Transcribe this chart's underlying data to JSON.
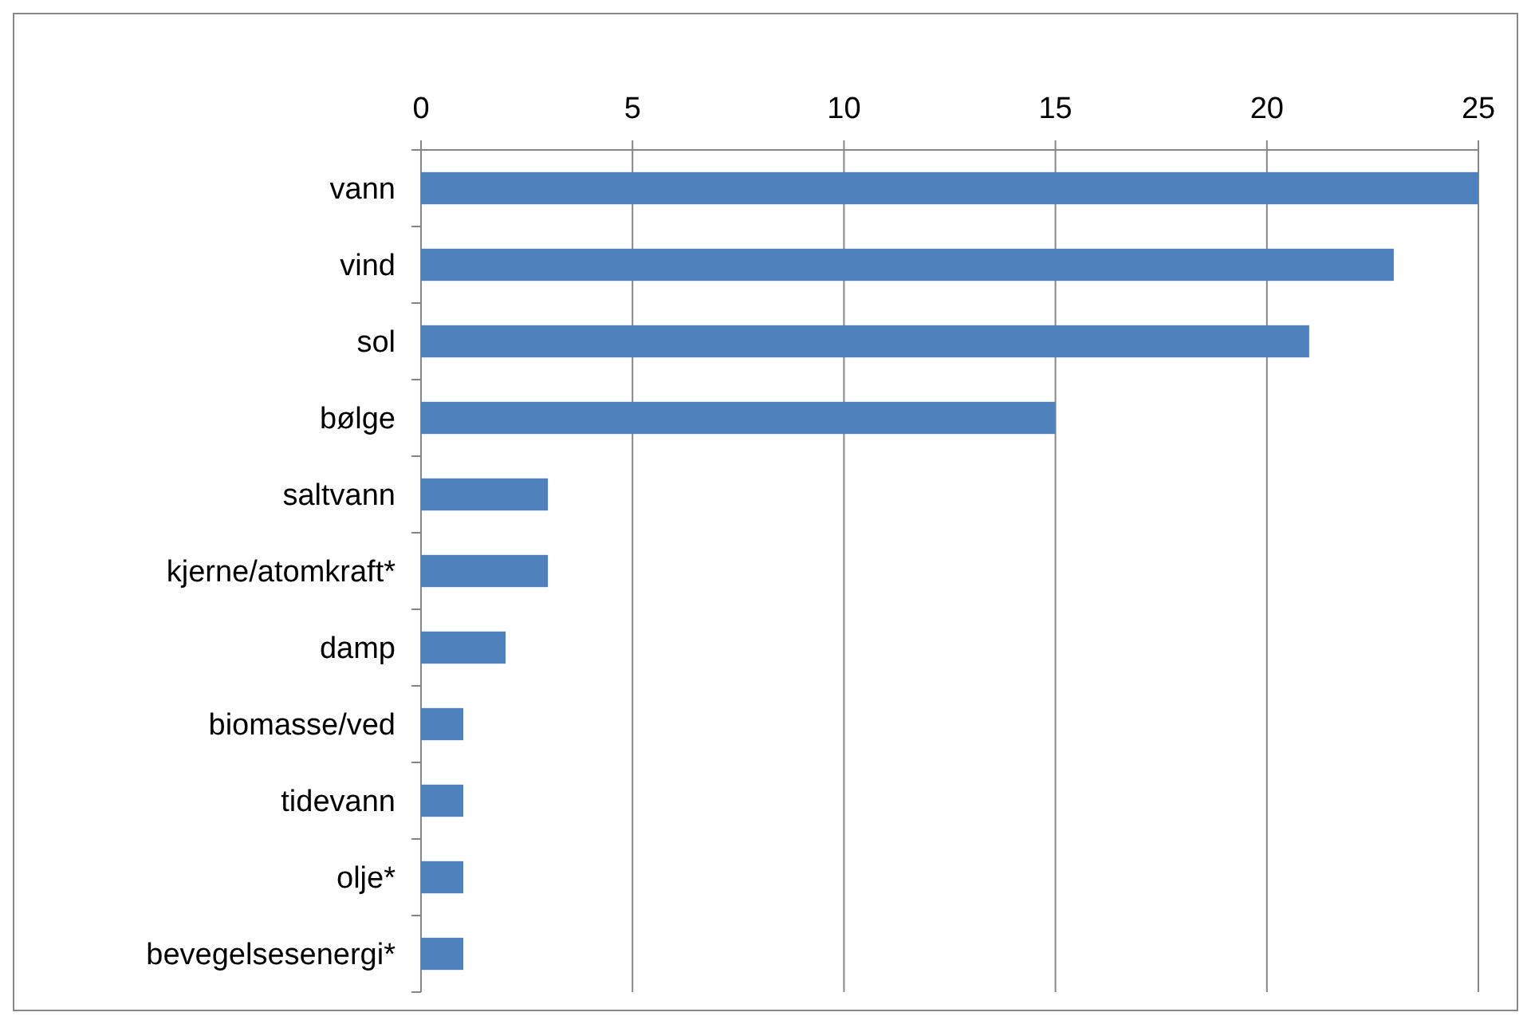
{
  "chart_data": {
    "type": "bar",
    "orientation": "horizontal",
    "categories": [
      "vann",
      "vind",
      "sol",
      "bølge",
      "saltvann",
      "kjerne/atomkraft*",
      "damp",
      "biomasse/ved",
      "tidevann",
      "olje*",
      "bevegelsesenergi*"
    ],
    "values": [
      25,
      23,
      21,
      15,
      3,
      3,
      2,
      1,
      1,
      1,
      1
    ],
    "color": "#4f81bd",
    "xlim": [
      0,
      25
    ],
    "xticks": [
      0,
      5,
      10,
      15,
      20,
      25
    ],
    "grid": "x"
  }
}
